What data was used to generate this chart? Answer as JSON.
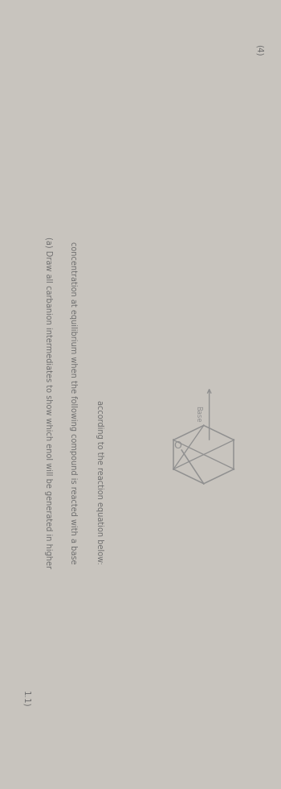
{
  "background_color": "#c8c4be",
  "text_color": "#707070",
  "line_color": "#909090",
  "question_number": "1.1)",
  "marks": "(4)",
  "text_line1": "(a) Draw all carbanion intermediates to show which enol will be generated in higher",
  "text_line2": "concentration at equilibrium when the following compound is reacted with a base",
  "text_line3": "according to the reaction equation below:",
  "base_label": "Base",
  "fontsize_text": 7.0,
  "fontsize_num": 7.5
}
